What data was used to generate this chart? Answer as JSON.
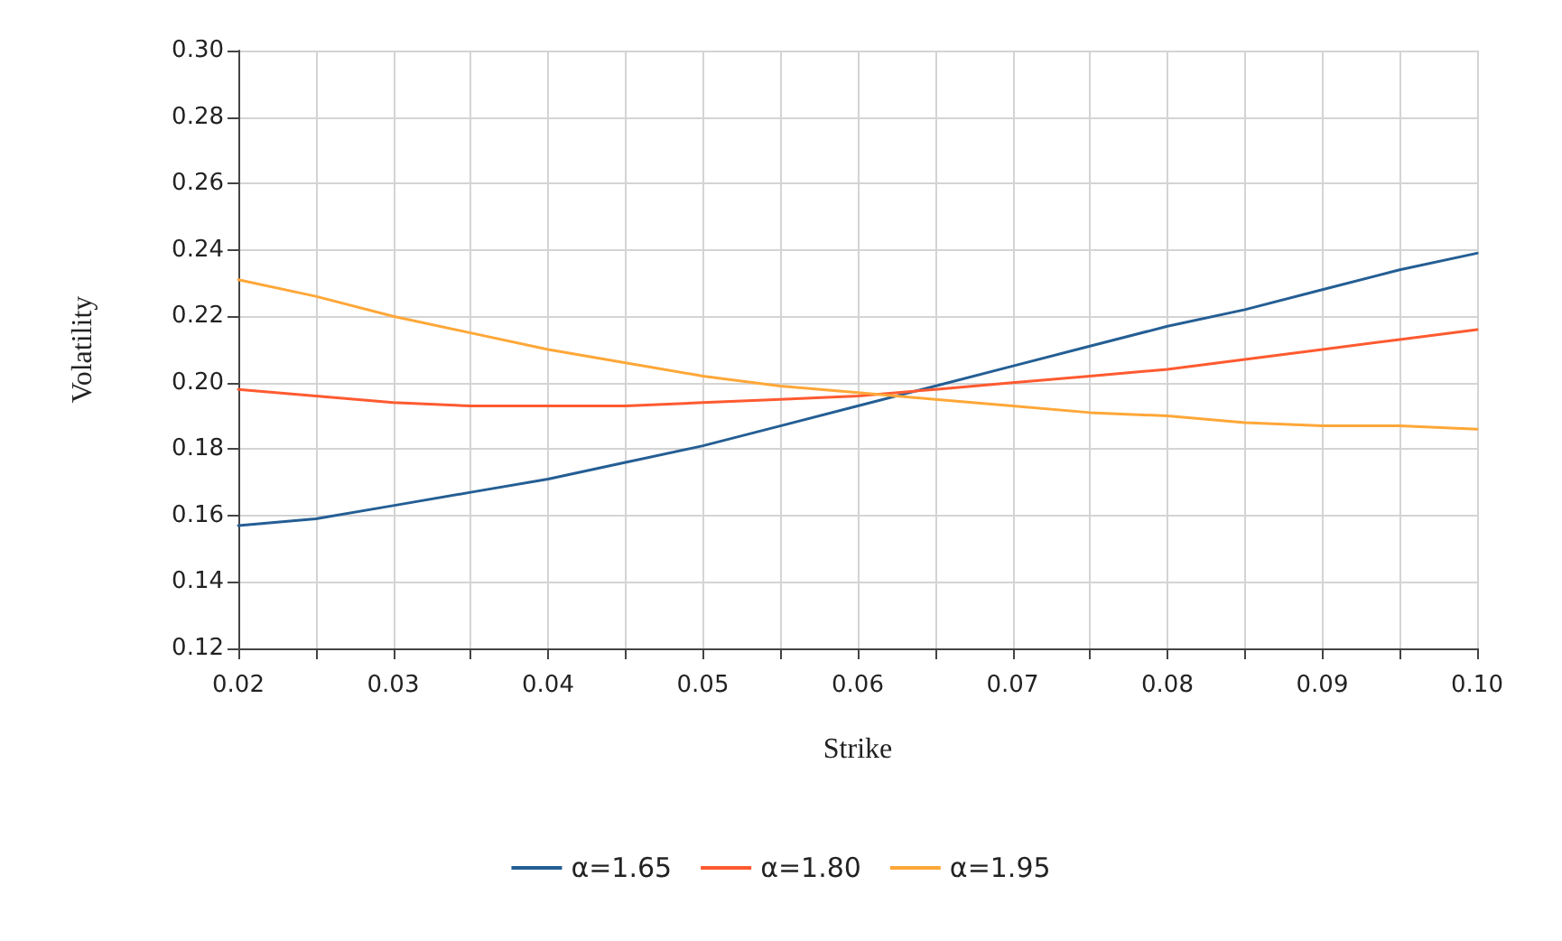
{
  "chart_data": {
    "type": "line",
    "xlabel": "Strike",
    "ylabel": "Volatility",
    "x": [
      0.02,
      0.025,
      0.03,
      0.035,
      0.04,
      0.045,
      0.05,
      0.055,
      0.06,
      0.065,
      0.07,
      0.075,
      0.08,
      0.085,
      0.09,
      0.095,
      0.1
    ],
    "series": [
      {
        "name": "α=1.65",
        "color": "#245e94",
        "values": [
          0.157,
          0.159,
          0.163,
          0.167,
          0.171,
          0.176,
          0.181,
          0.187,
          0.193,
          0.199,
          0.205,
          0.211,
          0.217,
          0.222,
          0.228,
          0.234,
          0.239
        ]
      },
      {
        "name": "α=1.80",
        "color": "#ff5a30",
        "values": [
          0.198,
          0.196,
          0.194,
          0.193,
          0.193,
          0.193,
          0.194,
          0.195,
          0.196,
          0.198,
          0.2,
          0.202,
          0.204,
          0.207,
          0.21,
          0.213,
          0.216
        ]
      },
      {
        "name": "α=1.95",
        "color": "#ffa738",
        "values": [
          0.231,
          0.226,
          0.22,
          0.215,
          0.21,
          0.206,
          0.202,
          0.199,
          0.197,
          0.195,
          0.193,
          0.191,
          0.19,
          0.188,
          0.187,
          0.187,
          0.186
        ]
      }
    ],
    "xlim": [
      0.02,
      0.1
    ],
    "xticks": [
      {
        "value": 0.02,
        "label": "0.02"
      },
      {
        "value": 0.025,
        "label": null
      },
      {
        "value": 0.03,
        "label": "0.03"
      },
      {
        "value": 0.035,
        "label": null
      },
      {
        "value": 0.04,
        "label": "0.04"
      },
      {
        "value": 0.045,
        "label": null
      },
      {
        "value": 0.05,
        "label": "0.05"
      },
      {
        "value": 0.055,
        "label": null
      },
      {
        "value": 0.06,
        "label": "0.06"
      },
      {
        "value": 0.065,
        "label": null
      },
      {
        "value": 0.07,
        "label": "0.07"
      },
      {
        "value": 0.075,
        "label": null
      },
      {
        "value": 0.08,
        "label": "0.08"
      },
      {
        "value": 0.085,
        "label": null
      },
      {
        "value": 0.09,
        "label": "0.09"
      },
      {
        "value": 0.095,
        "label": null
      },
      {
        "value": 0.1,
        "label": "0.10"
      }
    ],
    "ylim": [
      0.12,
      0.3
    ],
    "yticks": [
      {
        "value": 0.12,
        "label": "0.12"
      },
      {
        "value": 0.14,
        "label": "0.14"
      },
      {
        "value": 0.16,
        "label": "0.16"
      },
      {
        "value": 0.18,
        "label": "0.18"
      },
      {
        "value": 0.2,
        "label": "0.20"
      },
      {
        "value": 0.22,
        "label": "0.22"
      },
      {
        "value": 0.24,
        "label": "0.24"
      },
      {
        "value": 0.26,
        "label": "0.26"
      },
      {
        "value": 0.28,
        "label": "0.28"
      },
      {
        "value": 0.3,
        "label": "0.30"
      }
    ],
    "grid": true,
    "legend": "bottom",
    "marker": "none",
    "line_style": "solid"
  }
}
